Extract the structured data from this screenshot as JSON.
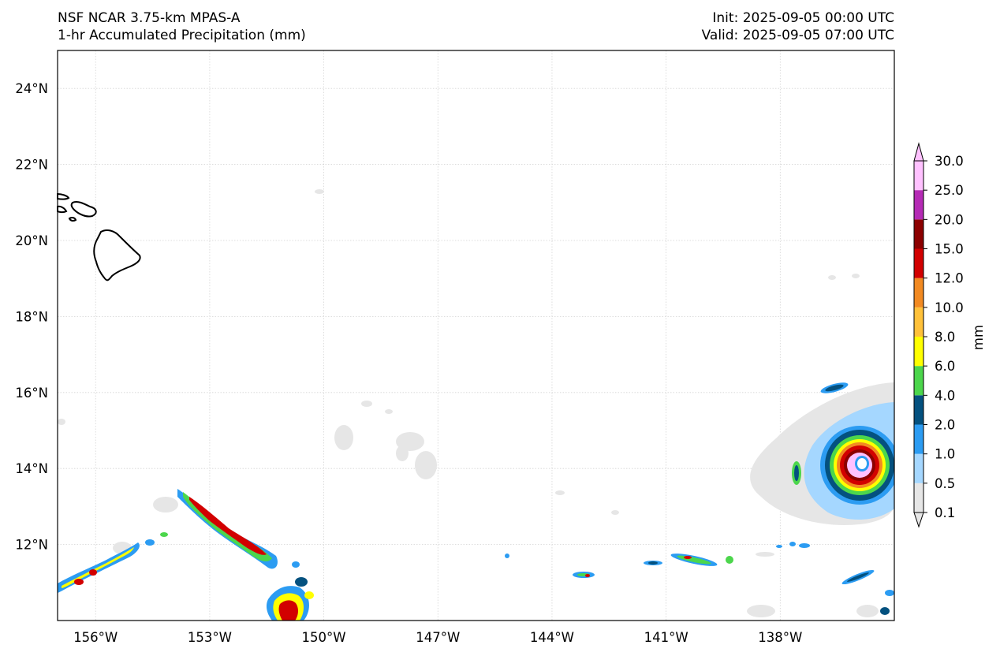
{
  "header": {
    "model": "NSF NCAR 3.75-km MPAS-A",
    "field": "1-hr Accumulated Precipitation (mm)",
    "init": "Init: 2025-09-05 00:00 UTC",
    "valid": "Valid: 2025-09-05 07:00 UTC"
  },
  "map": {
    "lat_labels": [
      "24°N",
      "22°N",
      "20°N",
      "18°N",
      "16°N",
      "14°N",
      "12°N"
    ],
    "lat_values": [
      24,
      22,
      20,
      18,
      16,
      14,
      12
    ],
    "lon_labels": [
      "156°W",
      "153°W",
      "150°W",
      "147°W",
      "144°W",
      "141°W",
      "138°W"
    ],
    "lon_values": [
      -156,
      -153,
      -150,
      -147,
      -144,
      -141,
      -138
    ],
    "extent": {
      "lon_min": -157.0,
      "lon_max": -135.0,
      "lat_min": 10.0,
      "lat_max": 25.0
    },
    "gridlines": true,
    "features": [
      "Hawaiian Islands coastline",
      "hurricane rain bands east of 136°W near 14°N"
    ]
  },
  "colorbar": {
    "label": "mm",
    "extend": "both",
    "ticks": [
      "0.1",
      "0.5",
      "1.0",
      "2.0",
      "4.0",
      "6.0",
      "8.0",
      "10.0",
      "12.0",
      "15.0",
      "20.0",
      "25.0",
      "30.0"
    ],
    "colors": [
      "#e6e6e6",
      "#a5d7ff",
      "#2c9cf2",
      "#04517f",
      "#4cd64c",
      "#ffff00",
      "#ffc13a",
      "#f28a22",
      "#d20000",
      "#8c0000",
      "#b52bb5",
      "#ffc1ff"
    ]
  }
}
